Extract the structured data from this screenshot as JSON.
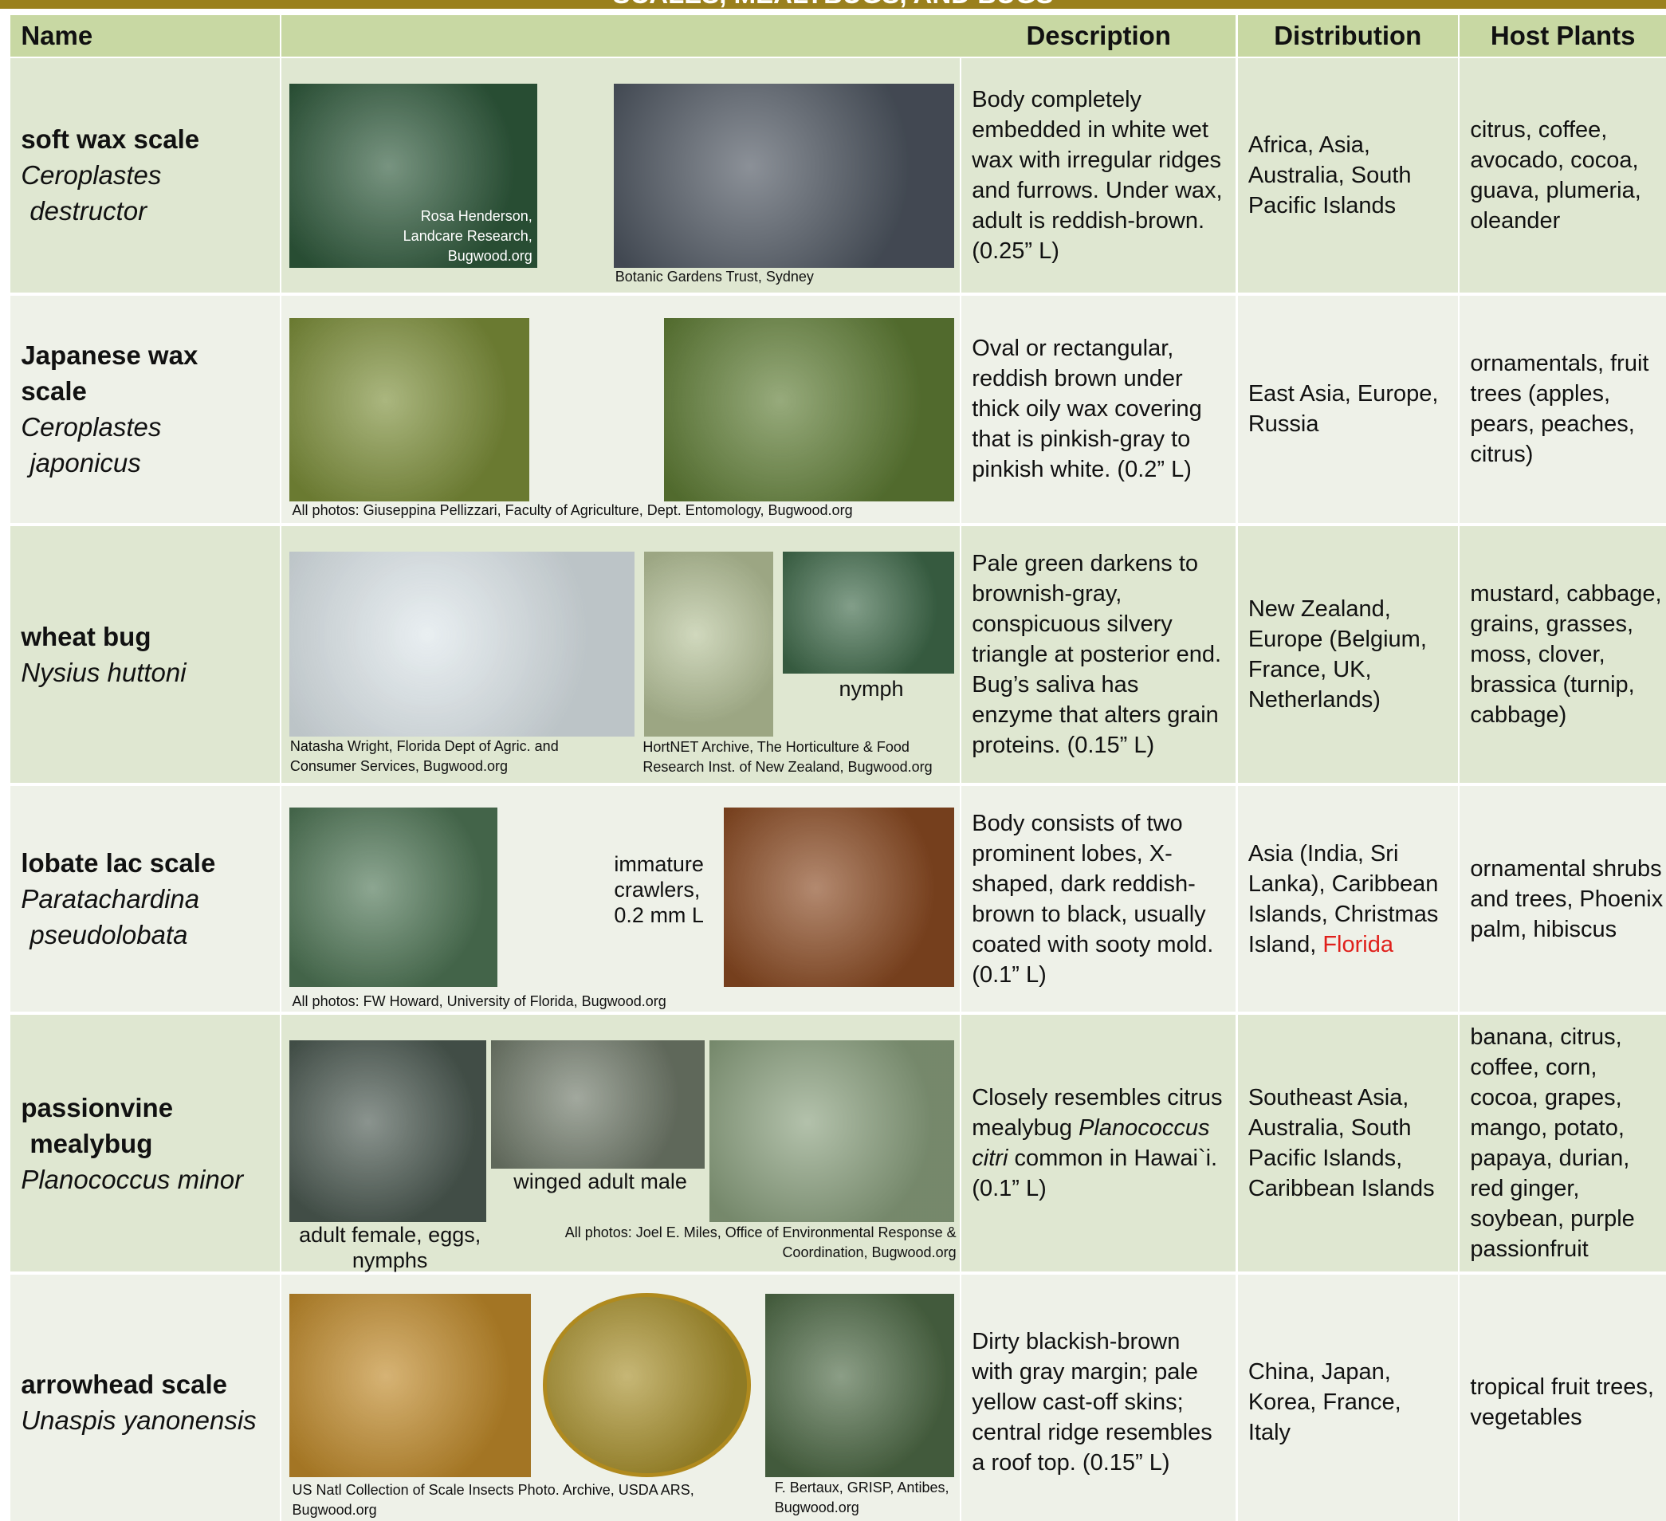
{
  "title": "SCALES, MEALYBUGS, AND BUGS",
  "header": [
    "Name",
    "Description",
    "Distribution",
    "Host Plants"
  ],
  "rows": [
    {
      "common": [
        "soft wax scale"
      ],
      "scientific": [
        "Ceroplastes",
        "destructor"
      ],
      "photo_captions": [
        "Rosa Henderson, Landcare Research, Bugwood.org",
        "Botanic  Gardens Trust, Sydney"
      ],
      "description": [
        "Body completely embedded in white wet wax with irregular ridges and furrows. Under wax, adult is reddish-brown. (0.25” L)"
      ],
      "distribution": [
        "Africa, Asia, Australia, South Pacific Islands"
      ],
      "host": "citrus, coffee, avocado, cocoa, guava, plumeria, oleander"
    },
    {
      "common": [
        "Japanese wax scale"
      ],
      "scientific": [
        "Ceroplastes",
        "japonicus"
      ],
      "photo_captions": [
        "All photos: Giuseppina Pellizzari, Faculty of Agriculture, Dept. Entomology, Bugwood.org"
      ],
      "description": [
        "Oval or rectangular, reddish brown under thick oily wax covering that is pinkish-gray to pinkish white. (0.2” L)"
      ],
      "distribution": [
        "East Asia, Europe, Russia"
      ],
      "host": "ornamentals, fruit trees (apples, pears, peaches, citrus)"
    },
    {
      "common": [
        "wheat bug"
      ],
      "scientific": [
        "Nysius huttoni"
      ],
      "photo_captions": [
        "nymph",
        "Natasha Wright, Florida Dept of Agric. and Consumer Services, Bugwood.org",
        "HortNET Archive, The Horticulture & Food Research Inst. of New Zealand, Bugwood.org"
      ],
      "description": [
        "Pale green darkens to brownish-gray, conspicuous silvery triangle at posterior end. Bug’s saliva has enzyme that alters grain proteins. (0.15” L)"
      ],
      "distribution": [
        "New Zealand, Europe (Belgium, France, UK, Netherlands)"
      ],
      "host": "mustard, cabbage, grains,  grasses, moss, clover, brassica (turnip, cabbage)"
    },
    {
      "common": [
        "lobate lac scale"
      ],
      "scientific": [
        "Paratachardina",
        "pseudolobata"
      ],
      "photo_captions": [
        "immature crawlers, 0.2 mm L",
        "All photos: FW Howard, University of Florida, Bugwood.org"
      ],
      "description": [
        "Body consists of two prominent lobes, X-shaped, dark reddish-brown to black, usually coated with sooty mold. (0.1” L)"
      ],
      "distribution": [
        "Asia (India, Sri Lanka), Caribbean Islands, Christmas Island, ",
        "Florida"
      ],
      "host": "ornamental shrubs and trees, Phoenix palm, hibiscus"
    },
    {
      "common": [
        "passionvine",
        "mealybug"
      ],
      "scientific": [
        "Planococcus minor"
      ],
      "photo_captions": [
        "winged adult male",
        "adult female, eggs, nymphs",
        "All photos: Joel E. Miles, Office of Environmental Response & Coordination, Bugwood.org"
      ],
      "description": [
        "Closely resembles citrus mealybug ",
        "Planococcus citri",
        " common in Hawai`i. (0.1” L)"
      ],
      "distribution": [
        "Southeast  Asia, Australia, South Pacific Islands, Caribbean Islands"
      ],
      "host": "banana, citrus, coffee, corn, cocoa, grapes, mango, potato, papaya, durian, red ginger, soybean, purple passionfruit"
    },
    {
      "common": [
        "arrowhead scale"
      ],
      "scientific": [
        "Unaspis yanonensis"
      ],
      "photo_captions": [
        "US Natl Collection of Scale Insects Photo. Archive, USDA ARS, Bugwood.org",
        "F. Bertaux, GRISP, Antibes, Bugwood.org"
      ],
      "description": [
        "Dirty blackish-brown with gray margin; pale yellow cast-off skins; central ridge resembles a roof top. (0.15” L)"
      ],
      "distribution": [
        "China, Japan, Korea, France, Italy"
      ],
      "host": "tropical fruit trees, vegetables"
    }
  ]
}
